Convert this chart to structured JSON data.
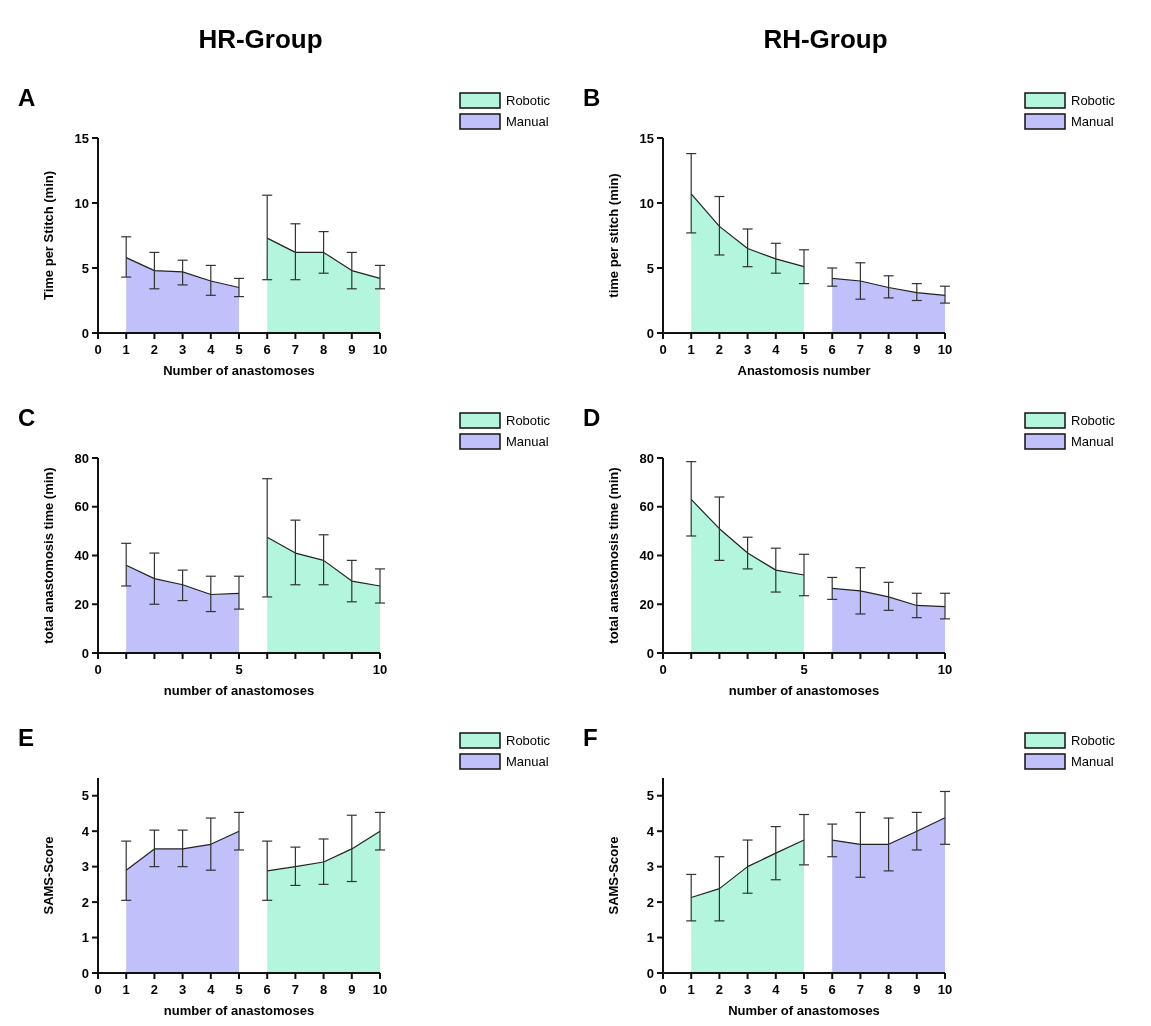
{
  "chart_data": [
    {
      "type": "area",
      "subtitle": "HR-Group",
      "title": "A",
      "xlabel": "Number of anastomoses",
      "ylabel": "Time per Stitch (min)",
      "xlim": [
        0,
        10
      ],
      "xticks": [
        0,
        1,
        2,
        3,
        4,
        5,
        6,
        7,
        8,
        9,
        10
      ],
      "ylim": [
        0,
        15
      ],
      "yticks": [
        0,
        5,
        10,
        15
      ],
      "legend": "right",
      "grid": false,
      "series": [
        {
          "name": "Robotic",
          "color": "#b3f5dd",
          "x": [
            6,
            7,
            8,
            9,
            10
          ],
          "values": [
            7.3,
            6.2,
            6.2,
            4.8,
            4.2
          ],
          "errors": [
            [
              4.1,
              10.6
            ],
            [
              4.1,
              8.4
            ],
            [
              4.6,
              7.8
            ],
            [
              3.4,
              6.2
            ],
            [
              3.4,
              5.2
            ]
          ]
        },
        {
          "name": "Manual",
          "color": "#c0c0fa",
          "x": [
            1,
            2,
            3,
            4,
            5
          ],
          "values": [
            5.8,
            4.8,
            4.7,
            4.0,
            3.5
          ],
          "errors": [
            [
              4.3,
              7.4
            ],
            [
              3.4,
              6.2
            ],
            [
              3.7,
              5.6
            ],
            [
              2.9,
              5.2
            ],
            [
              2.8,
              4.2
            ]
          ]
        }
      ]
    },
    {
      "type": "area",
      "subtitle": "RH-Group",
      "title": "B",
      "xlabel": "Anastomosis number",
      "ylabel": "time per stitch (min)",
      "xlim": [
        0,
        10
      ],
      "xticks": [
        0,
        1,
        2,
        3,
        4,
        5,
        6,
        7,
        8,
        9,
        10
      ],
      "ylim": [
        0,
        15
      ],
      "yticks": [
        0,
        5,
        10,
        15
      ],
      "legend": "right",
      "grid": false,
      "series": [
        {
          "name": "Robotic",
          "color": "#b3f5dd",
          "x": [
            1,
            2,
            3,
            4,
            5
          ],
          "values": [
            10.7,
            8.2,
            6.5,
            5.7,
            5.1
          ],
          "errors": [
            [
              7.7,
              13.8
            ],
            [
              6.0,
              10.5
            ],
            [
              5.1,
              8.0
            ],
            [
              4.6,
              6.9
            ],
            [
              3.8,
              6.4
            ]
          ]
        },
        {
          "name": "Manual",
          "color": "#c0c0fa",
          "x": [
            6,
            7,
            8,
            9,
            10
          ],
          "values": [
            4.2,
            4.0,
            3.5,
            3.1,
            2.9
          ],
          "errors": [
            [
              3.6,
              5.0
            ],
            [
              2.6,
              5.4
            ],
            [
              2.7,
              4.4
            ],
            [
              2.5,
              3.8
            ],
            [
              2.3,
              3.6
            ]
          ]
        }
      ]
    },
    {
      "type": "area",
      "title": "C",
      "xlabel": "number of anastomoses",
      "ylabel": "total anastomosis time (min)",
      "xlim": [
        0,
        10
      ],
      "xticks": [
        0,
        {
          "value": 1,
          "label": null
        },
        {
          "value": 2,
          "label": null
        },
        {
          "value": 3,
          "label": null
        },
        {
          "value": 4,
          "label": null
        },
        5,
        {
          "value": 6,
          "label": null
        },
        {
          "value": 7,
          "label": null
        },
        {
          "value": 8,
          "label": null
        },
        {
          "value": 9,
          "label": null
        },
        10
      ],
      "ylim": [
        0,
        80
      ],
      "yticks": [
        0,
        20,
        40,
        60,
        80
      ],
      "legend": "right",
      "grid": false,
      "series": [
        {
          "name": "Robotic",
          "color": "#b3f5dd",
          "x": [
            6,
            7,
            8,
            9,
            10
          ],
          "values": [
            47.5,
            41,
            38,
            29.5,
            27.5
          ],
          "errors": [
            [
              23,
              71.5
            ],
            [
              28,
              54.5
            ],
            [
              28,
              48.5
            ],
            [
              21,
              38
            ],
            [
              20.5,
              34.5
            ]
          ]
        },
        {
          "name": "Manual",
          "color": "#c0c0fa",
          "x": [
            1,
            2,
            3,
            4,
            5
          ],
          "values": [
            36,
            30.5,
            28,
            24,
            24.5
          ],
          "errors": [
            [
              27.5,
              45
            ],
            [
              20,
              41
            ],
            [
              21.5,
              34
            ],
            [
              17,
              31.5
            ],
            [
              18,
              31.5
            ]
          ]
        }
      ]
    },
    {
      "type": "area",
      "title": "D",
      "xlabel": "number of anastomoses",
      "ylabel": "total anastomosis time (min)",
      "xlim": [
        0,
        10
      ],
      "xticks": [
        0,
        {
          "value": 1,
          "label": null
        },
        {
          "value": 2,
          "label": null
        },
        {
          "value": 3,
          "label": null
        },
        {
          "value": 4,
          "label": null
        },
        5,
        {
          "value": 6,
          "label": null
        },
        {
          "value": 7,
          "label": null
        },
        {
          "value": 8,
          "label": null
        },
        {
          "value": 9,
          "label": null
        },
        10
      ],
      "ylim": [
        0,
        80
      ],
      "yticks": [
        0,
        20,
        40,
        60,
        80
      ],
      "legend": "right",
      "grid": false,
      "series": [
        {
          "name": "Robotic",
          "color": "#b3f5dd",
          "x": [
            1,
            2,
            3,
            4,
            5
          ],
          "values": [
            63,
            51,
            41,
            34,
            32
          ],
          "errors": [
            [
              48,
              78.5
            ],
            [
              38,
              64
            ],
            [
              34.5,
              47.5
            ],
            [
              25,
              43
            ],
            [
              23.5,
              40.5
            ]
          ]
        },
        {
          "name": "Manual",
          "color": "#c0c0fa",
          "x": [
            6,
            7,
            8,
            9,
            10
          ],
          "values": [
            26.5,
            25.5,
            23,
            19.5,
            19
          ],
          "errors": [
            [
              22,
              31
            ],
            [
              16,
              35
            ],
            [
              17.5,
              29
            ],
            [
              14.5,
              24.5
            ],
            [
              14,
              24.5
            ]
          ]
        }
      ]
    },
    {
      "type": "area",
      "title": "E",
      "xlabel": "number of anastomoses",
      "ylabel": "SAMS-Score",
      "xlim": [
        0,
        10
      ],
      "xticks": [
        0,
        1,
        2,
        3,
        4,
        5,
        6,
        7,
        8,
        9,
        10
      ],
      "ylim": [
        0,
        5.5
      ],
      "yticks": [
        0,
        1,
        2,
        3,
        4,
        5
      ],
      "legend": "right",
      "grid": false,
      "series": [
        {
          "name": "Robotic",
          "color": "#b3f5dd",
          "x": [
            6,
            7,
            8,
            9,
            10
          ],
          "values": [
            2.88,
            3.0,
            3.13,
            3.5,
            4.0
          ],
          "errors": [
            [
              2.05,
              3.72
            ],
            [
              2.47,
              3.55
            ],
            [
              2.5,
              3.78
            ],
            [
              2.58,
              4.45
            ],
            [
              3.47,
              4.53
            ]
          ]
        },
        {
          "name": "Manual",
          "color": "#c0c0fa",
          "x": [
            1,
            2,
            3,
            4,
            5
          ],
          "values": [
            2.9,
            3.5,
            3.5,
            3.63,
            4.0
          ],
          "errors": [
            [
              2.05,
              3.72
            ],
            [
              3.0,
              4.03
            ],
            [
              3.0,
              4.03
            ],
            [
              2.9,
              4.37
            ],
            [
              3.47,
              4.53
            ]
          ]
        }
      ]
    },
    {
      "type": "area",
      "title": "F",
      "xlabel": "Number of anastomoses",
      "ylabel": "SAMS-Score",
      "xlim": [
        0,
        10
      ],
      "xticks": [
        0,
        1,
        2,
        3,
        4,
        5,
        6,
        7,
        8,
        9,
        10
      ],
      "ylim": [
        0,
        5.5
      ],
      "yticks": [
        0,
        1,
        2,
        3,
        4,
        5
      ],
      "legend": "right",
      "grid": false,
      "series": [
        {
          "name": "Robotic",
          "color": "#b3f5dd",
          "x": [
            1,
            2,
            3,
            4,
            5
          ],
          "values": [
            2.13,
            2.38,
            3.0,
            3.38,
            3.75
          ],
          "errors": [
            [
              1.47,
              2.78
            ],
            [
              1.47,
              3.28
            ],
            [
              2.25,
              3.75
            ],
            [
              2.63,
              4.13
            ],
            [
              3.05,
              4.47
            ]
          ]
        },
        {
          "name": "Manual",
          "color": "#c0c0fa",
          "x": [
            6,
            7,
            8,
            9,
            10
          ],
          "values": [
            3.75,
            3.63,
            3.63,
            4.0,
            4.38
          ],
          "errors": [
            [
              3.28,
              4.2
            ],
            [
              2.7,
              4.53
            ],
            [
              2.88,
              4.37
            ],
            [
              3.47,
              4.53
            ],
            [
              3.63,
              5.12
            ]
          ]
        }
      ]
    }
  ]
}
